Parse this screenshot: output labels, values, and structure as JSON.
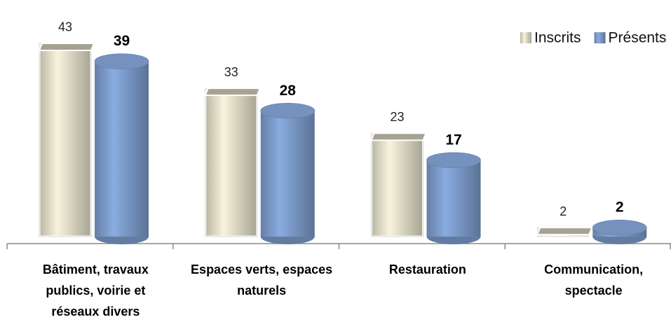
{
  "chart_data": {
    "type": "bar3d",
    "categories": [
      "Bâtiment, travaux publics, voirie et réseaux divers",
      "Espaces verts, espaces naturels",
      "Restauration",
      "Communication, spectacle"
    ],
    "series": [
      {
        "name": "Inscrits",
        "color": "#e6e2cc",
        "values": [
          43,
          33,
          23,
          2
        ]
      },
      {
        "name": "Présents",
        "color": "#7f9fcf",
        "values": [
          39,
          28,
          17,
          2
        ]
      }
    ],
    "ylim": [
      0,
      50
    ],
    "legend": "top-right"
  }
}
